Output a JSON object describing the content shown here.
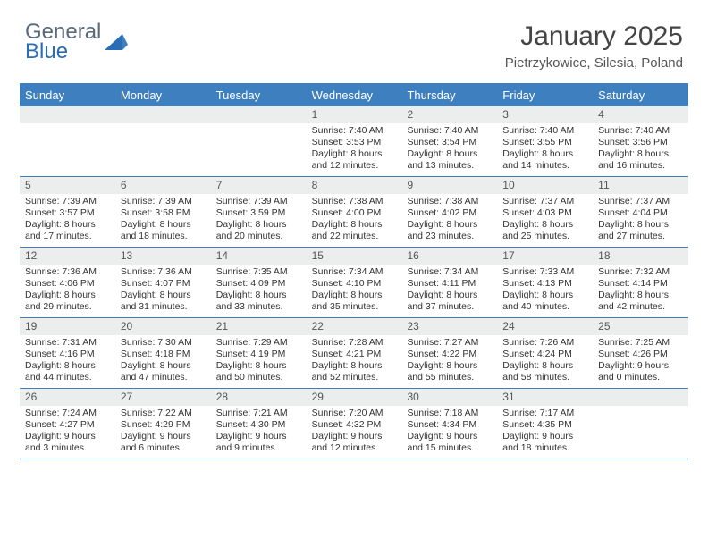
{
  "logo": {
    "line1": "General",
    "line2": "Blue"
  },
  "title": "January 2025",
  "location": "Pietrzykowice, Silesia, Poland",
  "colors": {
    "header_bg": "#3e7fbf",
    "header_text": "#ffffff",
    "daynum_bg": "#eceeee",
    "border": "#3e7fbf",
    "logo_gray": "#5a6a78",
    "logo_blue": "#2a6db5"
  },
  "fonts": {
    "title_size": 30,
    "location_size": 15,
    "dayhead_size": 13,
    "daynum_size": 12,
    "body_size": 10.5
  },
  "day_headers": [
    "Sunday",
    "Monday",
    "Tuesday",
    "Wednesday",
    "Thursday",
    "Friday",
    "Saturday"
  ],
  "weeks": [
    [
      {
        "num": "",
        "lines": []
      },
      {
        "num": "",
        "lines": []
      },
      {
        "num": "",
        "lines": []
      },
      {
        "num": "1",
        "lines": [
          "Sunrise: 7:40 AM",
          "Sunset: 3:53 PM",
          "Daylight: 8 hours and 12 minutes."
        ]
      },
      {
        "num": "2",
        "lines": [
          "Sunrise: 7:40 AM",
          "Sunset: 3:54 PM",
          "Daylight: 8 hours and 13 minutes."
        ]
      },
      {
        "num": "3",
        "lines": [
          "Sunrise: 7:40 AM",
          "Sunset: 3:55 PM",
          "Daylight: 8 hours and 14 minutes."
        ]
      },
      {
        "num": "4",
        "lines": [
          "Sunrise: 7:40 AM",
          "Sunset: 3:56 PM",
          "Daylight: 8 hours and 16 minutes."
        ]
      }
    ],
    [
      {
        "num": "5",
        "lines": [
          "Sunrise: 7:39 AM",
          "Sunset: 3:57 PM",
          "Daylight: 8 hours and 17 minutes."
        ]
      },
      {
        "num": "6",
        "lines": [
          "Sunrise: 7:39 AM",
          "Sunset: 3:58 PM",
          "Daylight: 8 hours and 18 minutes."
        ]
      },
      {
        "num": "7",
        "lines": [
          "Sunrise: 7:39 AM",
          "Sunset: 3:59 PM",
          "Daylight: 8 hours and 20 minutes."
        ]
      },
      {
        "num": "8",
        "lines": [
          "Sunrise: 7:38 AM",
          "Sunset: 4:00 PM",
          "Daylight: 8 hours and 22 minutes."
        ]
      },
      {
        "num": "9",
        "lines": [
          "Sunrise: 7:38 AM",
          "Sunset: 4:02 PM",
          "Daylight: 8 hours and 23 minutes."
        ]
      },
      {
        "num": "10",
        "lines": [
          "Sunrise: 7:37 AM",
          "Sunset: 4:03 PM",
          "Daylight: 8 hours and 25 minutes."
        ]
      },
      {
        "num": "11",
        "lines": [
          "Sunrise: 7:37 AM",
          "Sunset: 4:04 PM",
          "Daylight: 8 hours and 27 minutes."
        ]
      }
    ],
    [
      {
        "num": "12",
        "lines": [
          "Sunrise: 7:36 AM",
          "Sunset: 4:06 PM",
          "Daylight: 8 hours and 29 minutes."
        ]
      },
      {
        "num": "13",
        "lines": [
          "Sunrise: 7:36 AM",
          "Sunset: 4:07 PM",
          "Daylight: 8 hours and 31 minutes."
        ]
      },
      {
        "num": "14",
        "lines": [
          "Sunrise: 7:35 AM",
          "Sunset: 4:09 PM",
          "Daylight: 8 hours and 33 minutes."
        ]
      },
      {
        "num": "15",
        "lines": [
          "Sunrise: 7:34 AM",
          "Sunset: 4:10 PM",
          "Daylight: 8 hours and 35 minutes."
        ]
      },
      {
        "num": "16",
        "lines": [
          "Sunrise: 7:34 AM",
          "Sunset: 4:11 PM",
          "Daylight: 8 hours and 37 minutes."
        ]
      },
      {
        "num": "17",
        "lines": [
          "Sunrise: 7:33 AM",
          "Sunset: 4:13 PM",
          "Daylight: 8 hours and 40 minutes."
        ]
      },
      {
        "num": "18",
        "lines": [
          "Sunrise: 7:32 AM",
          "Sunset: 4:14 PM",
          "Daylight: 8 hours and 42 minutes."
        ]
      }
    ],
    [
      {
        "num": "19",
        "lines": [
          "Sunrise: 7:31 AM",
          "Sunset: 4:16 PM",
          "Daylight: 8 hours and 44 minutes."
        ]
      },
      {
        "num": "20",
        "lines": [
          "Sunrise: 7:30 AM",
          "Sunset: 4:18 PM",
          "Daylight: 8 hours and 47 minutes."
        ]
      },
      {
        "num": "21",
        "lines": [
          "Sunrise: 7:29 AM",
          "Sunset: 4:19 PM",
          "Daylight: 8 hours and 50 minutes."
        ]
      },
      {
        "num": "22",
        "lines": [
          "Sunrise: 7:28 AM",
          "Sunset: 4:21 PM",
          "Daylight: 8 hours and 52 minutes."
        ]
      },
      {
        "num": "23",
        "lines": [
          "Sunrise: 7:27 AM",
          "Sunset: 4:22 PM",
          "Daylight: 8 hours and 55 minutes."
        ]
      },
      {
        "num": "24",
        "lines": [
          "Sunrise: 7:26 AM",
          "Sunset: 4:24 PM",
          "Daylight: 8 hours and 58 minutes."
        ]
      },
      {
        "num": "25",
        "lines": [
          "Sunrise: 7:25 AM",
          "Sunset: 4:26 PM",
          "Daylight: 9 hours and 0 minutes."
        ]
      }
    ],
    [
      {
        "num": "26",
        "lines": [
          "Sunrise: 7:24 AM",
          "Sunset: 4:27 PM",
          "Daylight: 9 hours and 3 minutes."
        ]
      },
      {
        "num": "27",
        "lines": [
          "Sunrise: 7:22 AM",
          "Sunset: 4:29 PM",
          "Daylight: 9 hours and 6 minutes."
        ]
      },
      {
        "num": "28",
        "lines": [
          "Sunrise: 7:21 AM",
          "Sunset: 4:30 PM",
          "Daylight: 9 hours and 9 minutes."
        ]
      },
      {
        "num": "29",
        "lines": [
          "Sunrise: 7:20 AM",
          "Sunset: 4:32 PM",
          "Daylight: 9 hours and 12 minutes."
        ]
      },
      {
        "num": "30",
        "lines": [
          "Sunrise: 7:18 AM",
          "Sunset: 4:34 PM",
          "Daylight: 9 hours and 15 minutes."
        ]
      },
      {
        "num": "31",
        "lines": [
          "Sunrise: 7:17 AM",
          "Sunset: 4:35 PM",
          "Daylight: 9 hours and 18 minutes."
        ]
      },
      {
        "num": "",
        "lines": []
      }
    ]
  ]
}
